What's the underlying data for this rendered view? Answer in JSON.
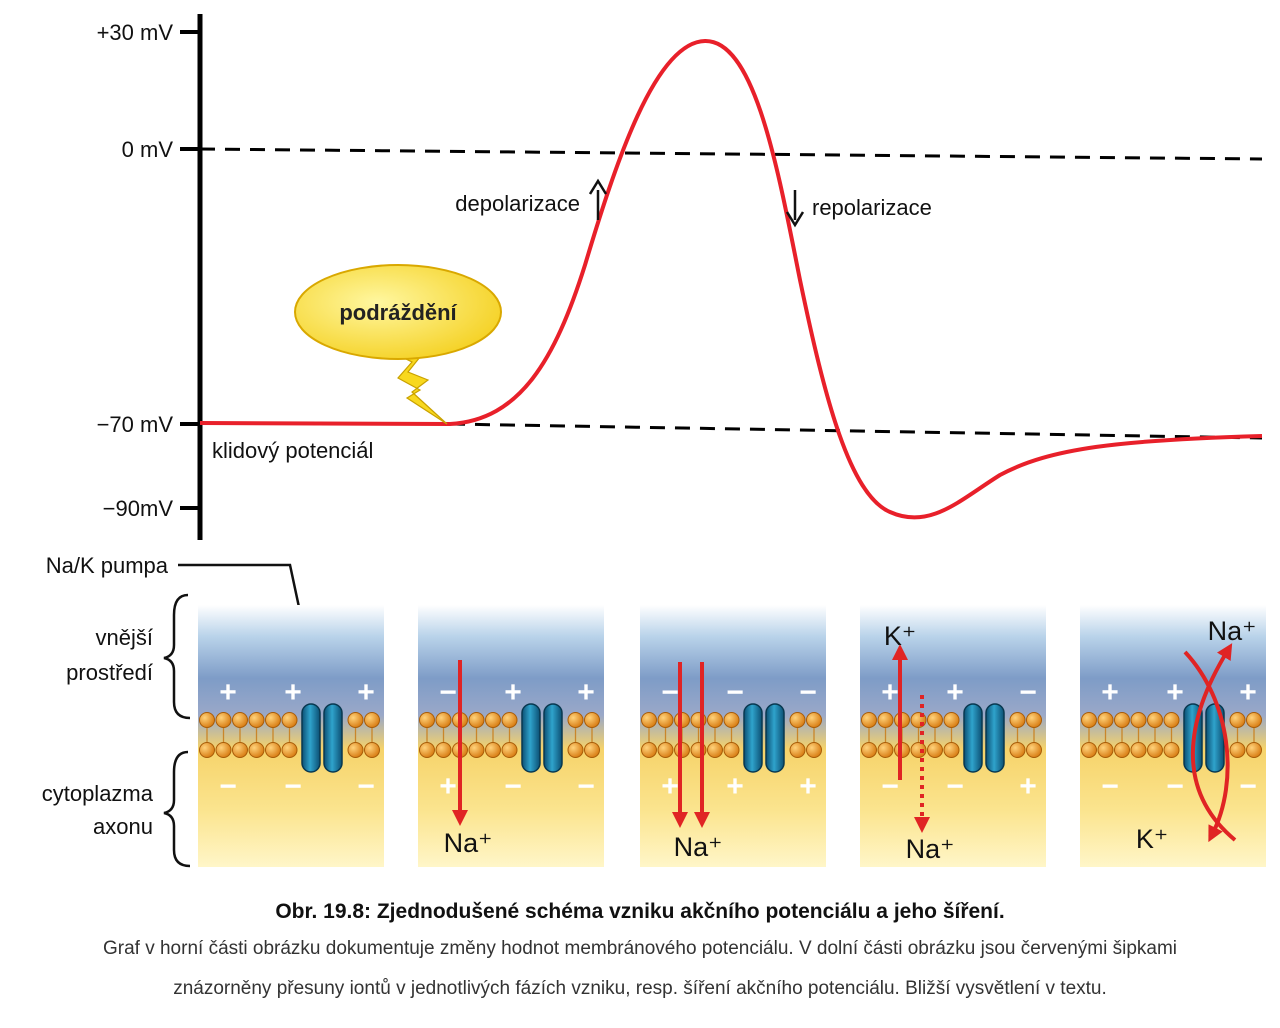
{
  "graph": {
    "y_labels": [
      "+30 mV",
      "0 mV",
      "−70 mV",
      "−90mV"
    ],
    "resting_label": "klidový potenciál",
    "depolarization_label": "depolarizace",
    "repolarization_label": "repolarizace",
    "stimulus_label": "podráždění"
  },
  "membrane": {
    "pump_label": "Na/K pumpa",
    "outer_label_line1": "vnější",
    "outer_label_line2": "prostředí",
    "inner_label_line1": "cytoplazma",
    "inner_label_line2": "axonu",
    "ion_na": "Na⁺",
    "ion_k": "K⁺"
  },
  "caption": {
    "title": "Obr. 19.8: Zjednodušené schéma vzniku akčního potenciálu a jeho šíření.",
    "line1": "Graf v horní části obrázku dokumentuje změny hodnot membránového potenciálu. V dolní části obrázku jsou červenými šipkami",
    "line2": "znázorněny přesuny iontů v jednotlivých fázích vzniku, resp. šíření akčního potenciálu. Bližší vysvětlení v textu."
  },
  "colors": {
    "trace": "#e8202a",
    "arrow": "#e02424",
    "channel": "#1f7fa8",
    "lipid": "#e89a2a"
  }
}
